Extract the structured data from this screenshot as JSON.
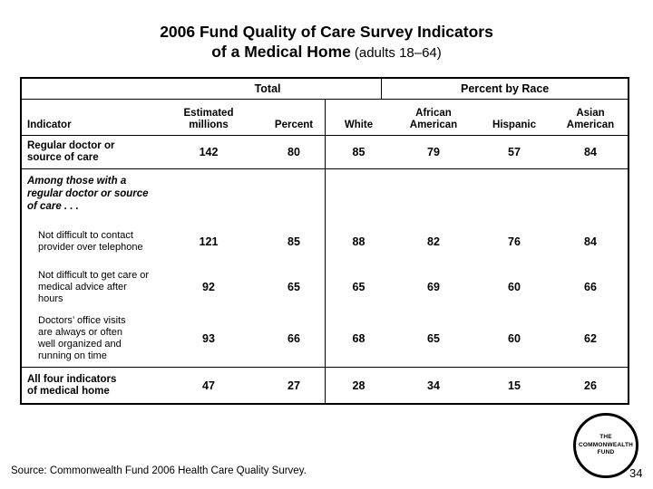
{
  "title": {
    "line1": "2006 Fund Quality of Care Survey Indicators",
    "line2_main": "of a Medical Home",
    "line2_suffix": "(adults 18–64)"
  },
  "table": {
    "group_headers": {
      "total": "Total",
      "race": "Percent by Race"
    },
    "columns": [
      {
        "l1": "Indicator"
      },
      {
        "l1": "Estimated",
        "l2": "millions"
      },
      {
        "l1": "Percent"
      },
      {
        "l1": "White"
      },
      {
        "l1": "African",
        "l2": "American"
      },
      {
        "l1": "Hispanic"
      },
      {
        "l1": "Asian",
        "l2": "American"
      }
    ],
    "rows": [
      {
        "label": "Regular doctor or source of care",
        "values": [
          "142",
          "80",
          "85",
          "79",
          "57",
          "84"
        ]
      },
      {
        "label": "Among those with a regular doctor or source of care . . ."
      },
      {
        "label": "Not difficult to contact provider over telephone",
        "values": [
          "121",
          "85",
          "88",
          "82",
          "76",
          "84"
        ]
      },
      {
        "label": "Not difficult to get care or medical advice after hours",
        "values": [
          "92",
          "65",
          "65",
          "69",
          "60",
          "66"
        ]
      },
      {
        "label": "Doctors’ office visits are always or often well organized and running on time",
        "values": [
          "93",
          "66",
          "68",
          "65",
          "60",
          "62"
        ]
      },
      {
        "label": "All four indicators of medical home",
        "values": [
          "47",
          "27",
          "28",
          "34",
          "15",
          "26"
        ]
      }
    ]
  },
  "footer": {
    "source": "Source: Commonwealth Fund 2006 Health Care Quality Survey.",
    "page_number": "34",
    "logo": {
      "line1": "THE",
      "line2": "COMMONWEALTH",
      "line3": "FUND"
    }
  }
}
